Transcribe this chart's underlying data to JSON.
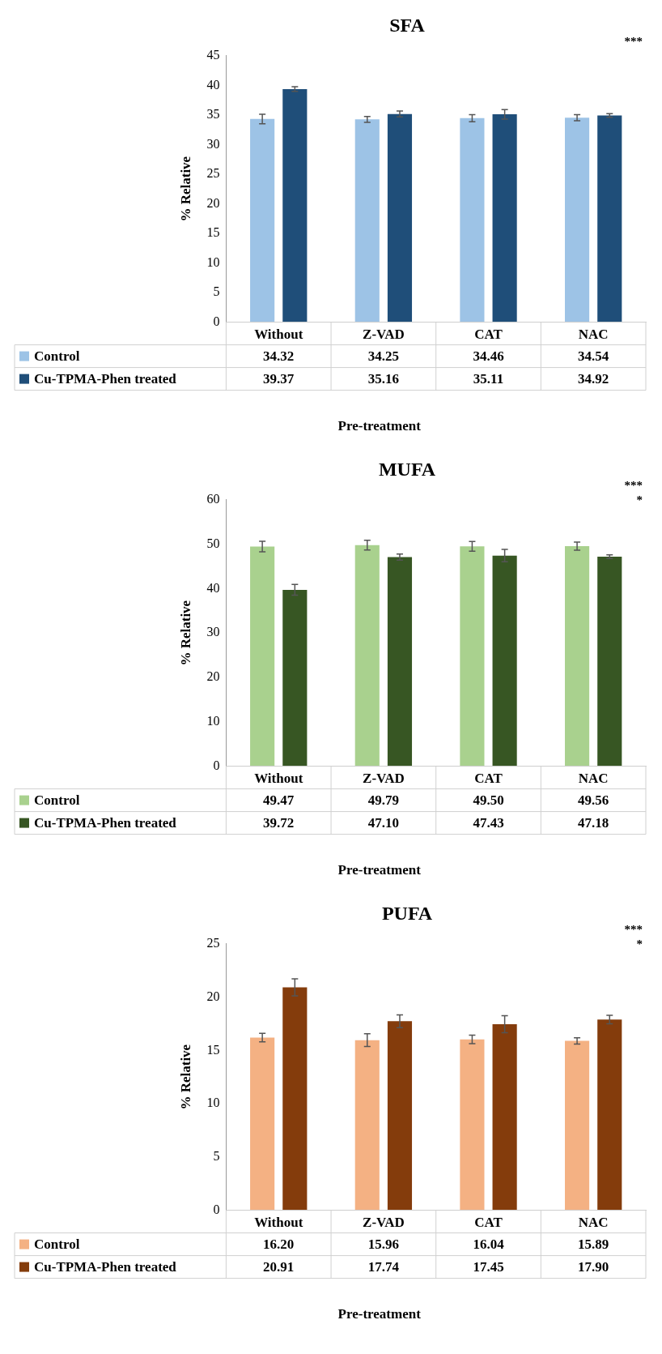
{
  "chart_data": [
    {
      "type": "bar",
      "title": "SFA",
      "ylabel": "% Relative",
      "xlabel": "Pre-treatment",
      "categories": [
        "Without",
        "Z-VAD",
        "CAT",
        "NAC"
      ],
      "series": [
        {
          "name": "Control",
          "color": "#9dc3e6",
          "values": [
            34.32,
            34.25,
            34.46,
            34.54
          ],
          "errors": [
            0.8,
            0.5,
            0.6,
            0.5
          ],
          "value_labels": [
            "34.32",
            "34.25",
            "34.46",
            "34.54"
          ]
        },
        {
          "name": "Cu-TPMA-Phen treated",
          "color": "#1f4e79",
          "values": [
            39.37,
            35.16,
            35.11,
            34.92
          ],
          "errors": [
            0.4,
            0.5,
            0.8,
            0.3
          ],
          "value_labels": [
            "39.37",
            "35.16",
            "35.11",
            "34.92"
          ]
        }
      ],
      "ylim": [
        0,
        45
      ],
      "yticks": [
        0,
        5,
        10,
        15,
        20,
        25,
        30,
        35,
        40,
        45
      ],
      "legend": "bottom",
      "annotations": [
        "***"
      ]
    },
    {
      "type": "bar",
      "title": "MUFA",
      "ylabel": "% Relative",
      "xlabel": "Pre-treatment",
      "categories": [
        "Without",
        "Z-VAD",
        "CAT",
        "NAC"
      ],
      "series": [
        {
          "name": "Control",
          "color": "#a9d18e",
          "values": [
            49.47,
            49.79,
            49.5,
            49.56
          ],
          "errors": [
            1.2,
            1.1,
            1.1,
            0.9
          ],
          "value_labels": [
            "49.47",
            "49.79",
            "49.50",
            "49.56"
          ]
        },
        {
          "name": "Cu-TPMA-Phen treated",
          "color": "#375623",
          "values": [
            39.72,
            47.1,
            47.43,
            47.18
          ],
          "errors": [
            1.2,
            0.7,
            1.4,
            0.4
          ],
          "value_labels": [
            "39.72",
            "47.10",
            "47.43",
            "47.18"
          ]
        }
      ],
      "ylim": [
        0,
        60
      ],
      "yticks": [
        0,
        10,
        20,
        30,
        40,
        50,
        60
      ],
      "legend": "bottom",
      "annotations": [
        "***",
        "*"
      ]
    },
    {
      "type": "bar",
      "title": "PUFA",
      "ylabel": "% Relative",
      "xlabel": "Pre-treatment",
      "categories": [
        "Without",
        "Z-VAD",
        "CAT",
        "NAC"
      ],
      "series": [
        {
          "name": "Control",
          "color": "#f4b183",
          "values": [
            16.2,
            15.96,
            16.04,
            15.89
          ],
          "errors": [
            0.4,
            0.6,
            0.4,
            0.3
          ],
          "value_labels": [
            "16.20",
            "15.96",
            "16.04",
            "15.89"
          ]
        },
        {
          "name": "Cu-TPMA-Phen treated",
          "color": "#843c0c",
          "values": [
            20.91,
            17.74,
            17.45,
            17.9
          ],
          "errors": [
            0.8,
            0.6,
            0.8,
            0.4
          ],
          "value_labels": [
            "20.91",
            "17.74",
            "17.45",
            "17.90"
          ]
        }
      ],
      "ylim": [
        0,
        25
      ],
      "yticks": [
        0,
        5,
        10,
        15,
        20,
        25
      ],
      "legend": "bottom",
      "annotations": [
        "***",
        "*"
      ]
    }
  ]
}
